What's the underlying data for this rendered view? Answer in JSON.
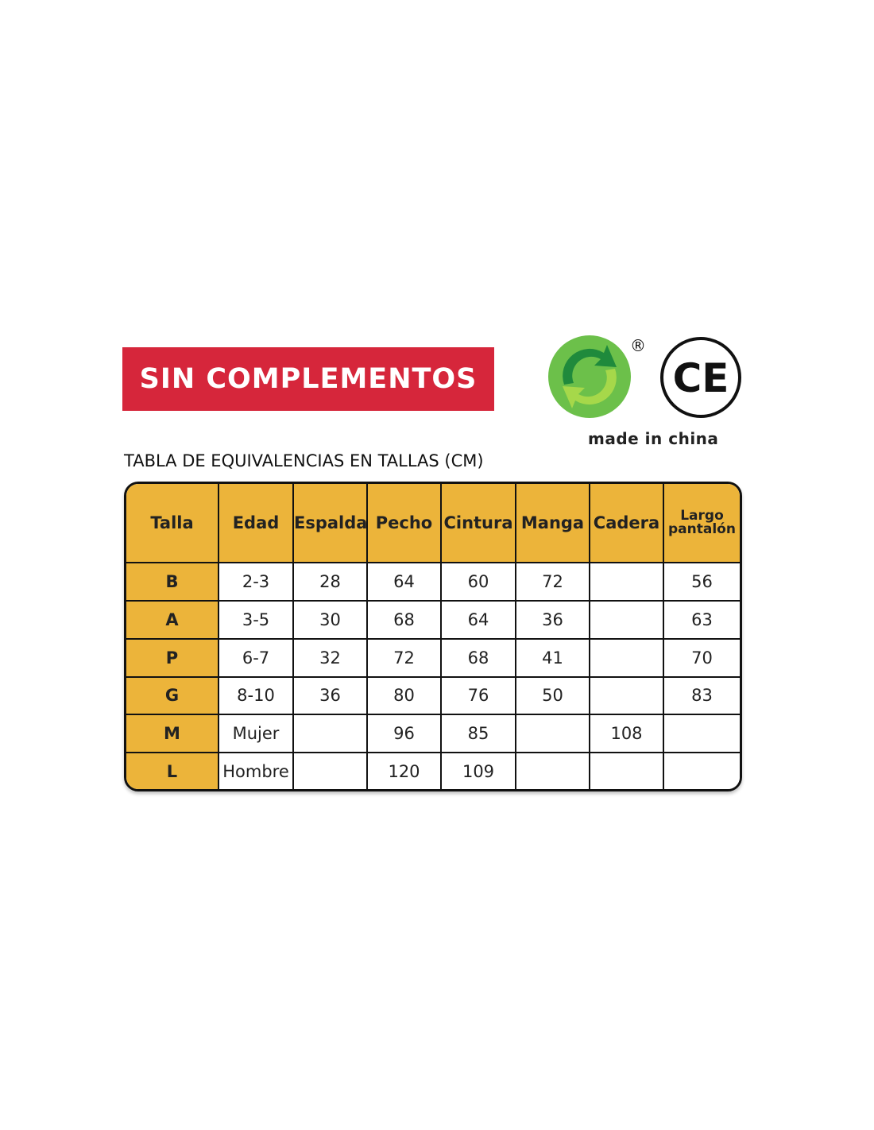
{
  "banner": {
    "label": "SIN COMPLEMENTOS",
    "color": "#d6263b"
  },
  "logos": {
    "green_dot": "green-dot-recycling-logo",
    "registered": "®",
    "ce_mark": "CE",
    "made_in": "made in china"
  },
  "table_title": "TABLA DE EQUIVALENCIAS EN TALLAS (CM)",
  "table": {
    "header_color": "#ecb43a",
    "headers": [
      "Talla",
      "Edad",
      "Espalda",
      "Pecho",
      "Cintura",
      "Manga",
      "Cadera",
      "Largo pantalón"
    ],
    "rows": [
      [
        "B",
        "2-3",
        "28",
        "64",
        "60",
        "72",
        "",
        "56"
      ],
      [
        "A",
        "3-5",
        "30",
        "68",
        "64",
        "36",
        "",
        "63"
      ],
      [
        "P",
        "6-7",
        "32",
        "72",
        "68",
        "41",
        "",
        "70"
      ],
      [
        "G",
        "8-10",
        "36",
        "80",
        "76",
        "50",
        "",
        "83"
      ],
      [
        "M",
        "Mujer",
        "",
        "96",
        "85",
        "",
        "108",
        ""
      ],
      [
        "L",
        "Hombre",
        "",
        "120",
        "109",
        "",
        "",
        ""
      ]
    ]
  }
}
